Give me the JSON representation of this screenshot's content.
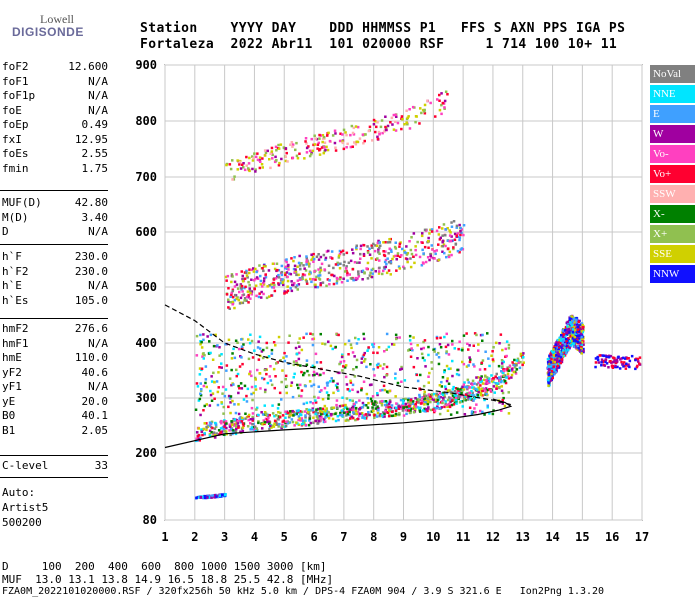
{
  "logo": {
    "brand": "Lowell",
    "product": "DIGISONDE"
  },
  "header": {
    "line1": "Station    YYYY DAY    DDD HHMMSS P1   FFS S AXN PPS IGA PS",
    "line2": "Fortaleza  2022 Abr11  101 020000 RSF     1 714 100 10+ 11"
  },
  "params_group1": [
    {
      "name": "foF2",
      "value": "12.600"
    },
    {
      "name": "foF1",
      "value": "N/A"
    },
    {
      "name": "foF1p",
      "value": "N/A"
    },
    {
      "name": "foE",
      "value": "N/A"
    },
    {
      "name": "foEp",
      "value": "0.49"
    },
    {
      "name": "fxI",
      "value": "12.95"
    },
    {
      "name": "foEs",
      "value": "2.55"
    },
    {
      "name": "fmin",
      "value": "1.75"
    }
  ],
  "params_group2": [
    {
      "name": "MUF(D)",
      "value": "42.80"
    },
    {
      "name": "M(D)",
      "value": "3.40"
    },
    {
      "name": "D",
      "value": "N/A"
    }
  ],
  "params_group3": [
    {
      "name": "h`F",
      "value": "230.0"
    },
    {
      "name": "h`F2",
      "value": "230.0"
    },
    {
      "name": "h`E",
      "value": "N/A"
    },
    {
      "name": "h`Es",
      "value": "105.0"
    }
  ],
  "params_group4": [
    {
      "name": "hmF2",
      "value": "276.6"
    },
    {
      "name": "hmF1",
      "value": "N/A"
    },
    {
      "name": "hmE",
      "value": "110.0"
    },
    {
      "name": "yF2",
      "value": "40.6"
    },
    {
      "name": "yF1",
      "value": "N/A"
    },
    {
      "name": "yE",
      "value": "20.0"
    },
    {
      "name": "B0",
      "value": "40.1"
    },
    {
      "name": "B1",
      "value": "2.05"
    }
  ],
  "params_group5": [
    {
      "name": "C-level",
      "value": "33"
    }
  ],
  "autoscale": {
    "line1": "Auto:",
    "line2": "Artist5",
    "line3": "500200"
  },
  "legend": [
    {
      "label": "NoVal",
      "color": "#808080"
    },
    {
      "label": "NNE",
      "color": "#00e5ff"
    },
    {
      "label": "E",
      "color": "#3fa0ff"
    },
    {
      "label": "W",
      "color": "#a000a0"
    },
    {
      "label": "Vo-",
      "color": "#ff40c0"
    },
    {
      "label": "Vo+",
      "color": "#ff0030"
    },
    {
      "label": "SSW",
      "color": "#ffb0b0"
    },
    {
      "label": "X-",
      "color": "#008000"
    },
    {
      "label": "X+",
      "color": "#90c050"
    },
    {
      "label": "SSE",
      "color": "#d0d000"
    },
    {
      "label": "NNW",
      "color": "#1010ff"
    }
  ],
  "footer": {
    "line1": "D     100  200  400  600  800 1000 1500 3000 [km]",
    "line2": "MUF  13.0 13.1 13.8 14.9 16.5 18.8 25.5 42.8 [MHz]",
    "line3": "FZA0M_2022101020000.RSF / 320fx256h 50 kHz 5.0 km / DPS-4 FZA0M 904 / 3.9 S 321.6 E   Ion2Png 1.3.20"
  },
  "chart_data": {
    "type": "scatter",
    "xlim": [
      1,
      17
    ],
    "ylim": [
      80,
      900
    ],
    "x_ticks": [
      "1",
      "2",
      "3",
      "4",
      "5",
      "6",
      "7",
      "8",
      "9",
      "10",
      "11",
      "12",
      "13",
      "14",
      "15",
      "16",
      "17"
    ],
    "y_ticks": [
      "80",
      "200",
      "300",
      "400",
      "500",
      "600",
      "700",
      "800",
      "900"
    ],
    "y_tick_values": [
      80,
      200,
      300,
      400,
      500,
      600,
      700,
      800,
      900
    ],
    "grid": true,
    "traces": [
      {
        "name": "O-trace F2",
        "x": [
          2.0,
          3.0,
          4.0,
          5.0,
          6.0,
          7.0,
          8.0,
          9.0,
          10.0,
          11.0,
          12.0,
          12.5,
          13.0
        ],
        "y": [
          222,
          232,
          240,
          246,
          252,
          258,
          264,
          270,
          278,
          292,
          312,
          330,
          360
        ]
      },
      {
        "name": "Es trace",
        "x": [
          2.0,
          2.5,
          3.0
        ],
        "y": [
          120,
          122,
          125
        ]
      },
      {
        "name": "Spread F cluster",
        "x": [
          13.8,
          14.2,
          14.6,
          15.0
        ],
        "y": [
          320,
          360,
          400,
          380
        ]
      },
      {
        "name": "Second hop",
        "x": [
          3.0,
          5.0,
          7.0,
          9.0,
          11.0
        ],
        "y": [
          470,
          500,
          520,
          540,
          575
        ]
      },
      {
        "name": "Third hop",
        "x": [
          3.0,
          5.0,
          7.0,
          9.0,
          10.5
        ],
        "y": [
          700,
          735,
          760,
          790,
          830
        ]
      }
    ],
    "profile_curves": [
      {
        "name": "electron density profile (solid)",
        "x": [
          1.0,
          3.0,
          5.0,
          7.0,
          9.0,
          10.5,
          11.5,
          12.2,
          12.6,
          12.4,
          12.0
        ],
        "y": [
          210,
          235,
          242,
          248,
          255,
          262,
          270,
          278,
          285,
          292,
          298
        ]
      },
      {
        "name": "model profile (dashed)",
        "x": [
          1.0,
          2.0,
          3.0,
          4.0,
          5.0,
          6.0,
          7.5,
          9.0,
          10.5,
          12.0,
          12.6
        ],
        "y": [
          468,
          440,
          400,
          380,
          365,
          355,
          340,
          320,
          310,
          296,
          288
        ]
      }
    ]
  }
}
